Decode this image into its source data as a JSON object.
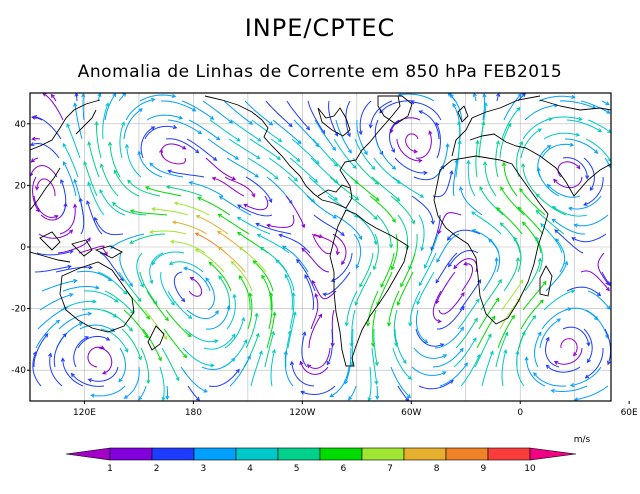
{
  "header": {
    "title": "INPE/CPTEC",
    "subtitle": "Anomalia de Linhas de Corrente em 850 hPa FEB2015"
  },
  "map": {
    "lat_ticks": [
      "40",
      "20",
      "0",
      "-20",
      "-40"
    ],
    "lon_ticks": [
      "120E",
      "180",
      "120W",
      "60W",
      "0",
      "60E"
    ],
    "lat_range": [
      -50,
      50
    ],
    "lon_range": [
      90,
      410
    ],
    "grid": true
  },
  "colorbar": {
    "unit": "m/s",
    "labels": [
      "1",
      "2",
      "3",
      "4",
      "5",
      "6",
      "7",
      "8",
      "9",
      "10"
    ],
    "colors": [
      "#a000c8",
      "#8200dc",
      "#1e3cff",
      "#00a0ff",
      "#00c8c8",
      "#00d28c",
      "#00dc00",
      "#a0e632",
      "#e6af2d",
      "#f08228",
      "#fa3c3c",
      "#f00082"
    ]
  },
  "streamline_colors": [
    "#a000c8",
    "#8200dc",
    "#1e3cff",
    "#00a0ff",
    "#00c8c8",
    "#00d28c",
    "#00dc00",
    "#a0e632",
    "#e6af2d",
    "#f08228"
  ]
}
